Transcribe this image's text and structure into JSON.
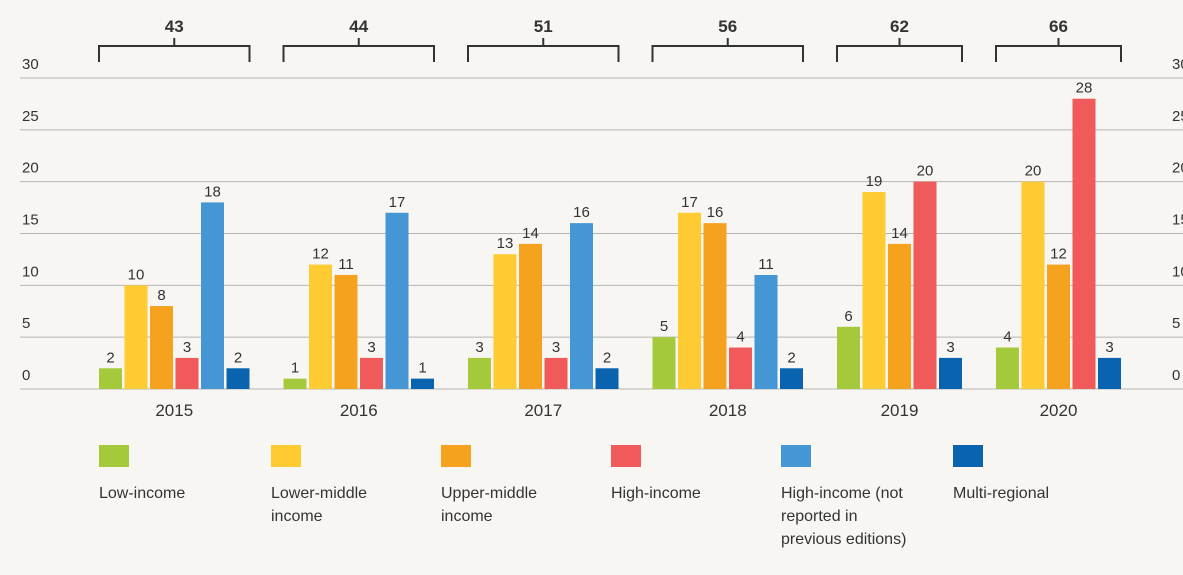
{
  "chart_data": {
    "type": "bar",
    "categories": [
      "2015",
      "2016",
      "2017",
      "2018",
      "2019",
      "2020"
    ],
    "totals": [
      43,
      44,
      51,
      56,
      62,
      66
    ],
    "series": [
      {
        "name": "Low-income",
        "color": "#a4c93a",
        "values": [
          2,
          1,
          3,
          5,
          6,
          4
        ]
      },
      {
        "name": "Lower-middle income",
        "color": "#fecb33",
        "values": [
          10,
          12,
          13,
          17,
          19,
          20
        ]
      },
      {
        "name": "Upper-middle income",
        "color": "#f5a31f",
        "values": [
          8,
          11,
          14,
          16,
          14,
          12
        ]
      },
      {
        "name": "High-income",
        "color": "#f15a5b",
        "values": [
          3,
          3,
          3,
          4,
          20,
          28
        ]
      },
      {
        "name": "High-income (not reported in previous editions)",
        "color": "#4596d5",
        "values": [
          18,
          17,
          16,
          11,
          null,
          null
        ]
      },
      {
        "name": "Multi-regional",
        "color": "#0a63ae",
        "values": [
          2,
          1,
          2,
          2,
          3,
          3
        ]
      }
    ],
    "ylim": [
      0,
      30
    ],
    "yticks": [
      0,
      5,
      10,
      15,
      20,
      25,
      30
    ],
    "grid": true
  }
}
